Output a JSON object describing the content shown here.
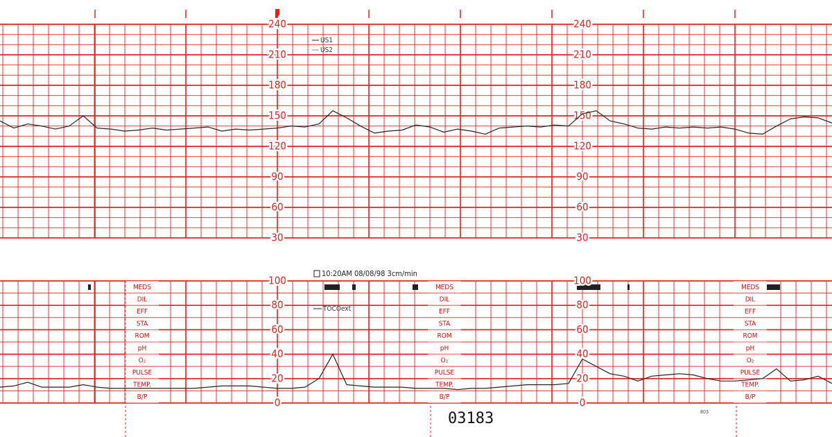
{
  "chart_data": [
    {
      "type": "line",
      "ylim": [
        30,
        240
      ],
      "yticks": [
        30,
        60,
        90,
        120,
        150,
        180,
        210,
        240
      ],
      "legend_entries": [
        "US1",
        "US2"
      ],
      "series": [
        {
          "name": "US1",
          "color": "#222222",
          "values": [
            145,
            138,
            142,
            140,
            137,
            140,
            150,
            138,
            137,
            135,
            136,
            138,
            136,
            137,
            138,
            139,
            135,
            137,
            136,
            137,
            138,
            140,
            139,
            142,
            155,
            148,
            140,
            133,
            135,
            136,
            141,
            139,
            134,
            137,
            135,
            132,
            138,
            139,
            140,
            139,
            141,
            140,
            152,
            155,
            145,
            142,
            138,
            137,
            139,
            138,
            139,
            138,
            139,
            137,
            133,
            132,
            140,
            147,
            149,
            148,
            143
          ]
        }
      ]
    },
    {
      "type": "line",
      "ylim": [
        0,
        100
      ],
      "yticks": [
        0,
        20,
        40,
        60,
        80,
        100
      ],
      "header": "10:20AM  08/08/98  3cm/min",
      "annotation_labels": [
        "MEDS",
        "DIL",
        "EFF",
        "STA",
        "ROM",
        "pH",
        "O₂",
        "PULSE",
        "TEMP.",
        "B/P"
      ],
      "series": [
        {
          "name": "TOCOext",
          "color": "#222222",
          "values": [
            13,
            14,
            17,
            13,
            13,
            13,
            15,
            13,
            12,
            12,
            12,
            12,
            12,
            12,
            12,
            13,
            14,
            14,
            14,
            13,
            12,
            12,
            13,
            20,
            40,
            15,
            14,
            13,
            13,
            13,
            12,
            12,
            12,
            11,
            12,
            12,
            13,
            14,
            15,
            15,
            15,
            16,
            36,
            30,
            24,
            22,
            18,
            22,
            23,
            24,
            23,
            20,
            18,
            18,
            19,
            20,
            28,
            18,
            19,
            22,
            16
          ]
        }
      ]
    }
  ],
  "strip_number": "03183",
  "page_code": "803"
}
